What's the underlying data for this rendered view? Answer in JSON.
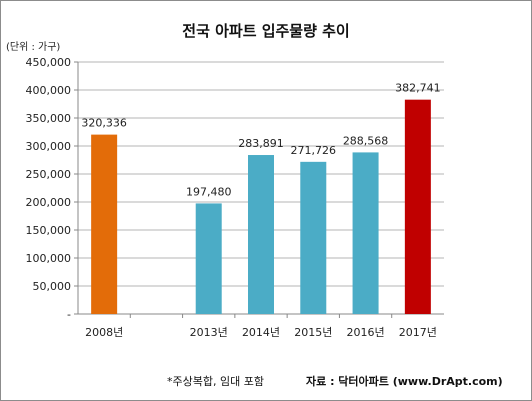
{
  "chart_data": {
    "type": "bar",
    "title": "전국 아파트 입주물량 추이",
    "unit_label": "(단위 : 가구)",
    "categories": [
      "2008년",
      "",
      "2013년",
      "2014년",
      "2015년",
      "2016년",
      "2017년"
    ],
    "values": [
      320336,
      null,
      197480,
      283891,
      271726,
      288568,
      382741
    ],
    "value_labels": [
      "320,336",
      "",
      "197,480",
      "283,891",
      "271,726",
      "288,568",
      "382,741"
    ],
    "bar_colors": [
      "#E36C09",
      "",
      "#4BACC6",
      "#4BACC6",
      "#4BACC6",
      "#4BACC6",
      "#C00000"
    ],
    "ylim": [
      0,
      450000
    ],
    "yticks": [
      0,
      50000,
      100000,
      150000,
      200000,
      250000,
      300000,
      350000,
      400000,
      450000
    ],
    "ytick_labels": [
      "-",
      "50,000",
      "100,000",
      "150,000",
      "200,000",
      "250,000",
      "300,000",
      "350,000",
      "400,000",
      "450,000"
    ],
    "gridlines": true
  },
  "footnote": "*주상복합, 임대 포함",
  "source": "자료 : 닥터아파트 (www.DrApt.com)"
}
